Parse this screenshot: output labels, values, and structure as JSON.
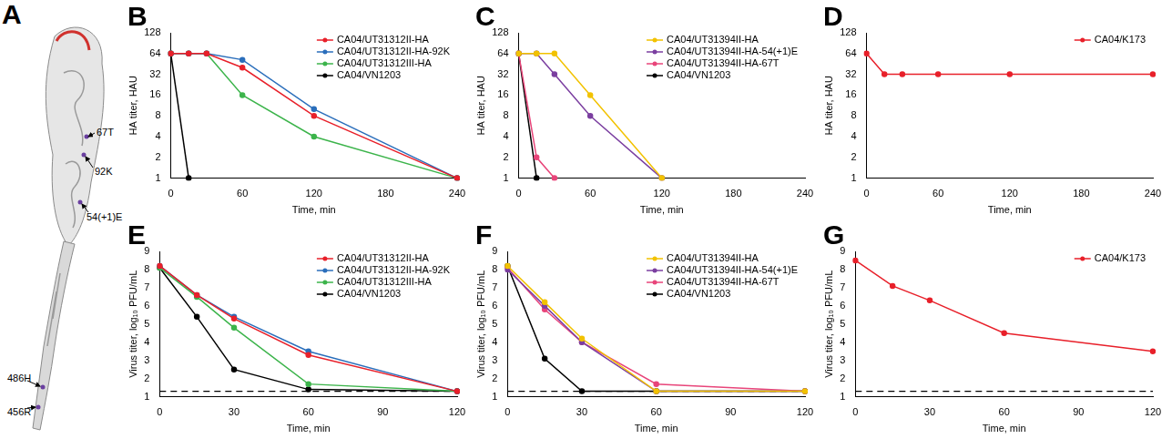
{
  "diagram": {
    "panel": "A",
    "labels": [
      "67T",
      "92K",
      "54(+1)E",
      "486H",
      "456R"
    ]
  },
  "chart_data": [
    {
      "type": "line",
      "panel": "B",
      "x_label": "Time, min",
      "y_label": "HA titer, HAU",
      "x": [
        0,
        15,
        30,
        60,
        120,
        240
      ],
      "xlim": [
        0,
        240
      ],
      "xticks": [
        0,
        60,
        120,
        180,
        240
      ],
      "ylim": [
        1,
        128
      ],
      "yticks": [
        1,
        2,
        4,
        8,
        16,
        32,
        64,
        128
      ],
      "log": "y",
      "grid": false,
      "legend": "upper right",
      "series": [
        {
          "name": "CA04/UT31312II-HA",
          "color": "#e8202a",
          "marker": "circle",
          "line_style": "solid",
          "values": [
            64,
            64,
            64,
            40,
            8,
            1
          ]
        },
        {
          "name": "CA04/UT31312II-HA-92K",
          "color": "#2a6ebb",
          "marker": "circle",
          "line_style": "solid",
          "values": [
            64,
            64,
            64,
            52,
            10,
            1
          ]
        },
        {
          "name": "CA04/UT31312III-HA",
          "color": "#3cb44b",
          "marker": "circle",
          "line_style": "solid",
          "values": [
            64,
            64,
            64,
            16,
            4,
            1
          ]
        },
        {
          "name": "CA04/VN1203",
          "color": "#000000",
          "marker": "circle",
          "line_style": "solid",
          "values": [
            64,
            1,
            null,
            null,
            null,
            null
          ]
        }
      ]
    },
    {
      "type": "line",
      "panel": "C",
      "x_label": "Time, min",
      "y_label": "HA titer, HAU",
      "x": [
        0,
        15,
        30,
        60,
        120
      ],
      "xlim": [
        0,
        240
      ],
      "xticks": [
        0,
        60,
        120,
        180,
        240
      ],
      "ylim": [
        1,
        128
      ],
      "yticks": [
        1,
        2,
        4,
        8,
        16,
        32,
        64,
        128
      ],
      "log": "y",
      "grid": false,
      "legend": "upper right",
      "series": [
        {
          "name": "CA04/UT31394II-HA",
          "color": "#f2c200",
          "marker": "circle",
          "line_style": "solid",
          "values": [
            64,
            64,
            64,
            16,
            1
          ]
        },
        {
          "name": "CA04/UT31394II-HA-54(+1)E",
          "color": "#7b3fa0",
          "marker": "circle",
          "line_style": "solid",
          "values": [
            64,
            64,
            32,
            8,
            1
          ]
        },
        {
          "name": "CA04/UT31394II-HA-67T",
          "color": "#e8457a",
          "marker": "circle",
          "line_style": "solid",
          "values": [
            64,
            2,
            1,
            null,
            null
          ]
        },
        {
          "name": "CA04/VN1203",
          "color": "#000000",
          "marker": "circle",
          "line_style": "solid",
          "values": [
            64,
            1,
            null,
            null,
            null
          ]
        }
      ]
    },
    {
      "type": "line",
      "panel": "D",
      "x_label": "Time, min",
      "y_label": "HA titer, HAU",
      "x": [
        0,
        15,
        30,
        60,
        120,
        240
      ],
      "xlim": [
        0,
        240
      ],
      "xticks": [
        0,
        60,
        120,
        180,
        240
      ],
      "ylim": [
        1,
        128
      ],
      "yticks": [
        1,
        2,
        4,
        8,
        16,
        32,
        64,
        128
      ],
      "log": "y",
      "grid": false,
      "legend": "upper right",
      "series": [
        {
          "name": "CA04/K173",
          "color": "#e8202a",
          "marker": "circle",
          "line_style": "solid",
          "values": [
            64,
            32,
            32,
            32,
            32,
            32
          ]
        }
      ]
    },
    {
      "type": "line",
      "panel": "E",
      "x_label": "Time, min",
      "y_label": "Virus titer, log₁₀ PFU/mL",
      "x": [
        0,
        15,
        30,
        60,
        120
      ],
      "xlim": [
        0,
        120
      ],
      "xticks": [
        0,
        30,
        60,
        90,
        120
      ],
      "ylim": [
        1,
        9
      ],
      "yticks": [
        1,
        2,
        3,
        4,
        5,
        6,
        7,
        8,
        9
      ],
      "grid": false,
      "legend": "upper right",
      "detection_limit": 1.3,
      "series": [
        {
          "name": "CA04/UT31312II-HA",
          "color": "#e8202a",
          "marker": "circle",
          "line_style": "solid",
          "values": [
            8.2,
            6.6,
            5.3,
            3.3,
            1.3
          ]
        },
        {
          "name": "CA04/UT31312II-HA-92K",
          "color": "#2a6ebb",
          "marker": "circle",
          "line_style": "solid",
          "values": [
            8.2,
            6.6,
            5.4,
            3.5,
            1.3
          ]
        },
        {
          "name": "CA04/UT31312III-HA",
          "color": "#3cb44b",
          "marker": "circle",
          "line_style": "solid",
          "values": [
            8.1,
            6.5,
            4.8,
            1.7,
            1.3
          ]
        },
        {
          "name": "CA04/VN1203",
          "color": "#000000",
          "marker": "circle",
          "line_style": "solid",
          "values": [
            8.1,
            5.4,
            2.5,
            1.4,
            1.3
          ]
        }
      ]
    },
    {
      "type": "line",
      "panel": "F",
      "x_label": "Time, min",
      "y_label": "Virus titer, log₁₀ PFU/mL",
      "x": [
        0,
        15,
        30,
        60,
        120
      ],
      "xlim": [
        0,
        120
      ],
      "xticks": [
        0,
        30,
        60,
        90,
        120
      ],
      "ylim": [
        1,
        9
      ],
      "yticks": [
        1,
        2,
        3,
        4,
        5,
        6,
        7,
        8,
        9
      ],
      "grid": false,
      "legend": "upper right",
      "detection_limit": 1.3,
      "series": [
        {
          "name": "CA04/UT31394II-HA",
          "color": "#f2c200",
          "marker": "circle",
          "line_style": "solid",
          "values": [
            8.2,
            6.2,
            4.2,
            1.3,
            1.3
          ]
        },
        {
          "name": "CA04/UT31394II-HA-54(+1)E",
          "color": "#7b3fa0",
          "marker": "circle",
          "line_style": "solid",
          "values": [
            8.0,
            6.0,
            4.0,
            1.3,
            1.3
          ]
        },
        {
          "name": "CA04/UT31394II-HA-67T",
          "color": "#e8457a",
          "marker": "circle",
          "line_style": "solid",
          "values": [
            8.1,
            5.8,
            4.0,
            1.7,
            1.3
          ]
        },
        {
          "name": "CA04/VN1203",
          "color": "#000000",
          "marker": "circle",
          "line_style": "solid",
          "values": [
            8.2,
            3.1,
            1.3,
            1.3,
            1.3
          ]
        }
      ]
    },
    {
      "type": "line",
      "panel": "G",
      "x_label": "Time, min",
      "y_label": "Virus titer, log₁₀ PFU/mL",
      "x": [
        0,
        15,
        30,
        60,
        120
      ],
      "xlim": [
        0,
        120
      ],
      "xticks": [
        0,
        30,
        60,
        90,
        120
      ],
      "ylim": [
        1,
        9
      ],
      "yticks": [
        1,
        2,
        3,
        4,
        5,
        6,
        7,
        8,
        9
      ],
      "grid": false,
      "legend": "upper right",
      "detection_limit": 1.3,
      "series": [
        {
          "name": "CA04/K173",
          "color": "#e8202a",
          "marker": "circle",
          "line_style": "solid",
          "values": [
            8.5,
            7.1,
            6.3,
            4.5,
            3.5
          ]
        }
      ]
    }
  ]
}
